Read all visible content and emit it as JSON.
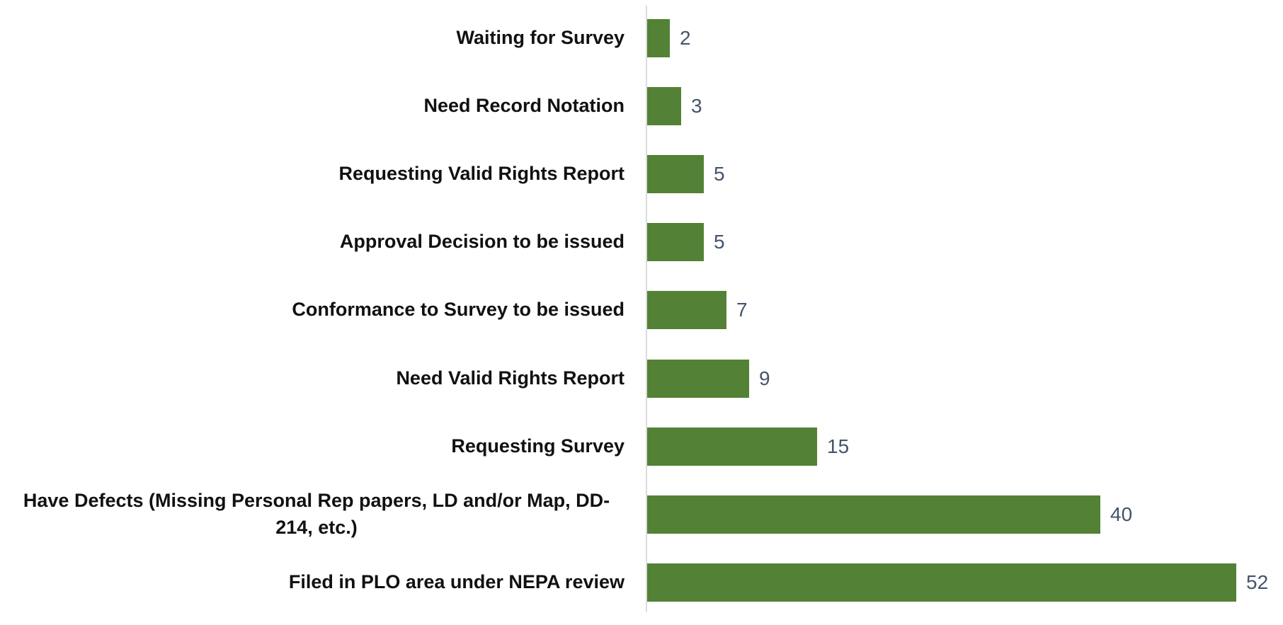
{
  "chart_data": {
    "type": "bar",
    "orientation": "horizontal",
    "categories": [
      "Waiting for Survey",
      "Need Record Notation",
      "Requesting Valid Rights Report",
      "Approval Decision to be issued",
      "Conformance to Survey to be issued",
      "Need Valid Rights Report",
      "Requesting Survey",
      "Have Defects (Missing Personal Rep papers, LD and/or Map, DD-214, etc.)",
      "Filed in PLO area under NEPA review"
    ],
    "values": [
      2,
      3,
      5,
      5,
      7,
      9,
      15,
      40,
      52
    ],
    "color": "#538135"
  }
}
